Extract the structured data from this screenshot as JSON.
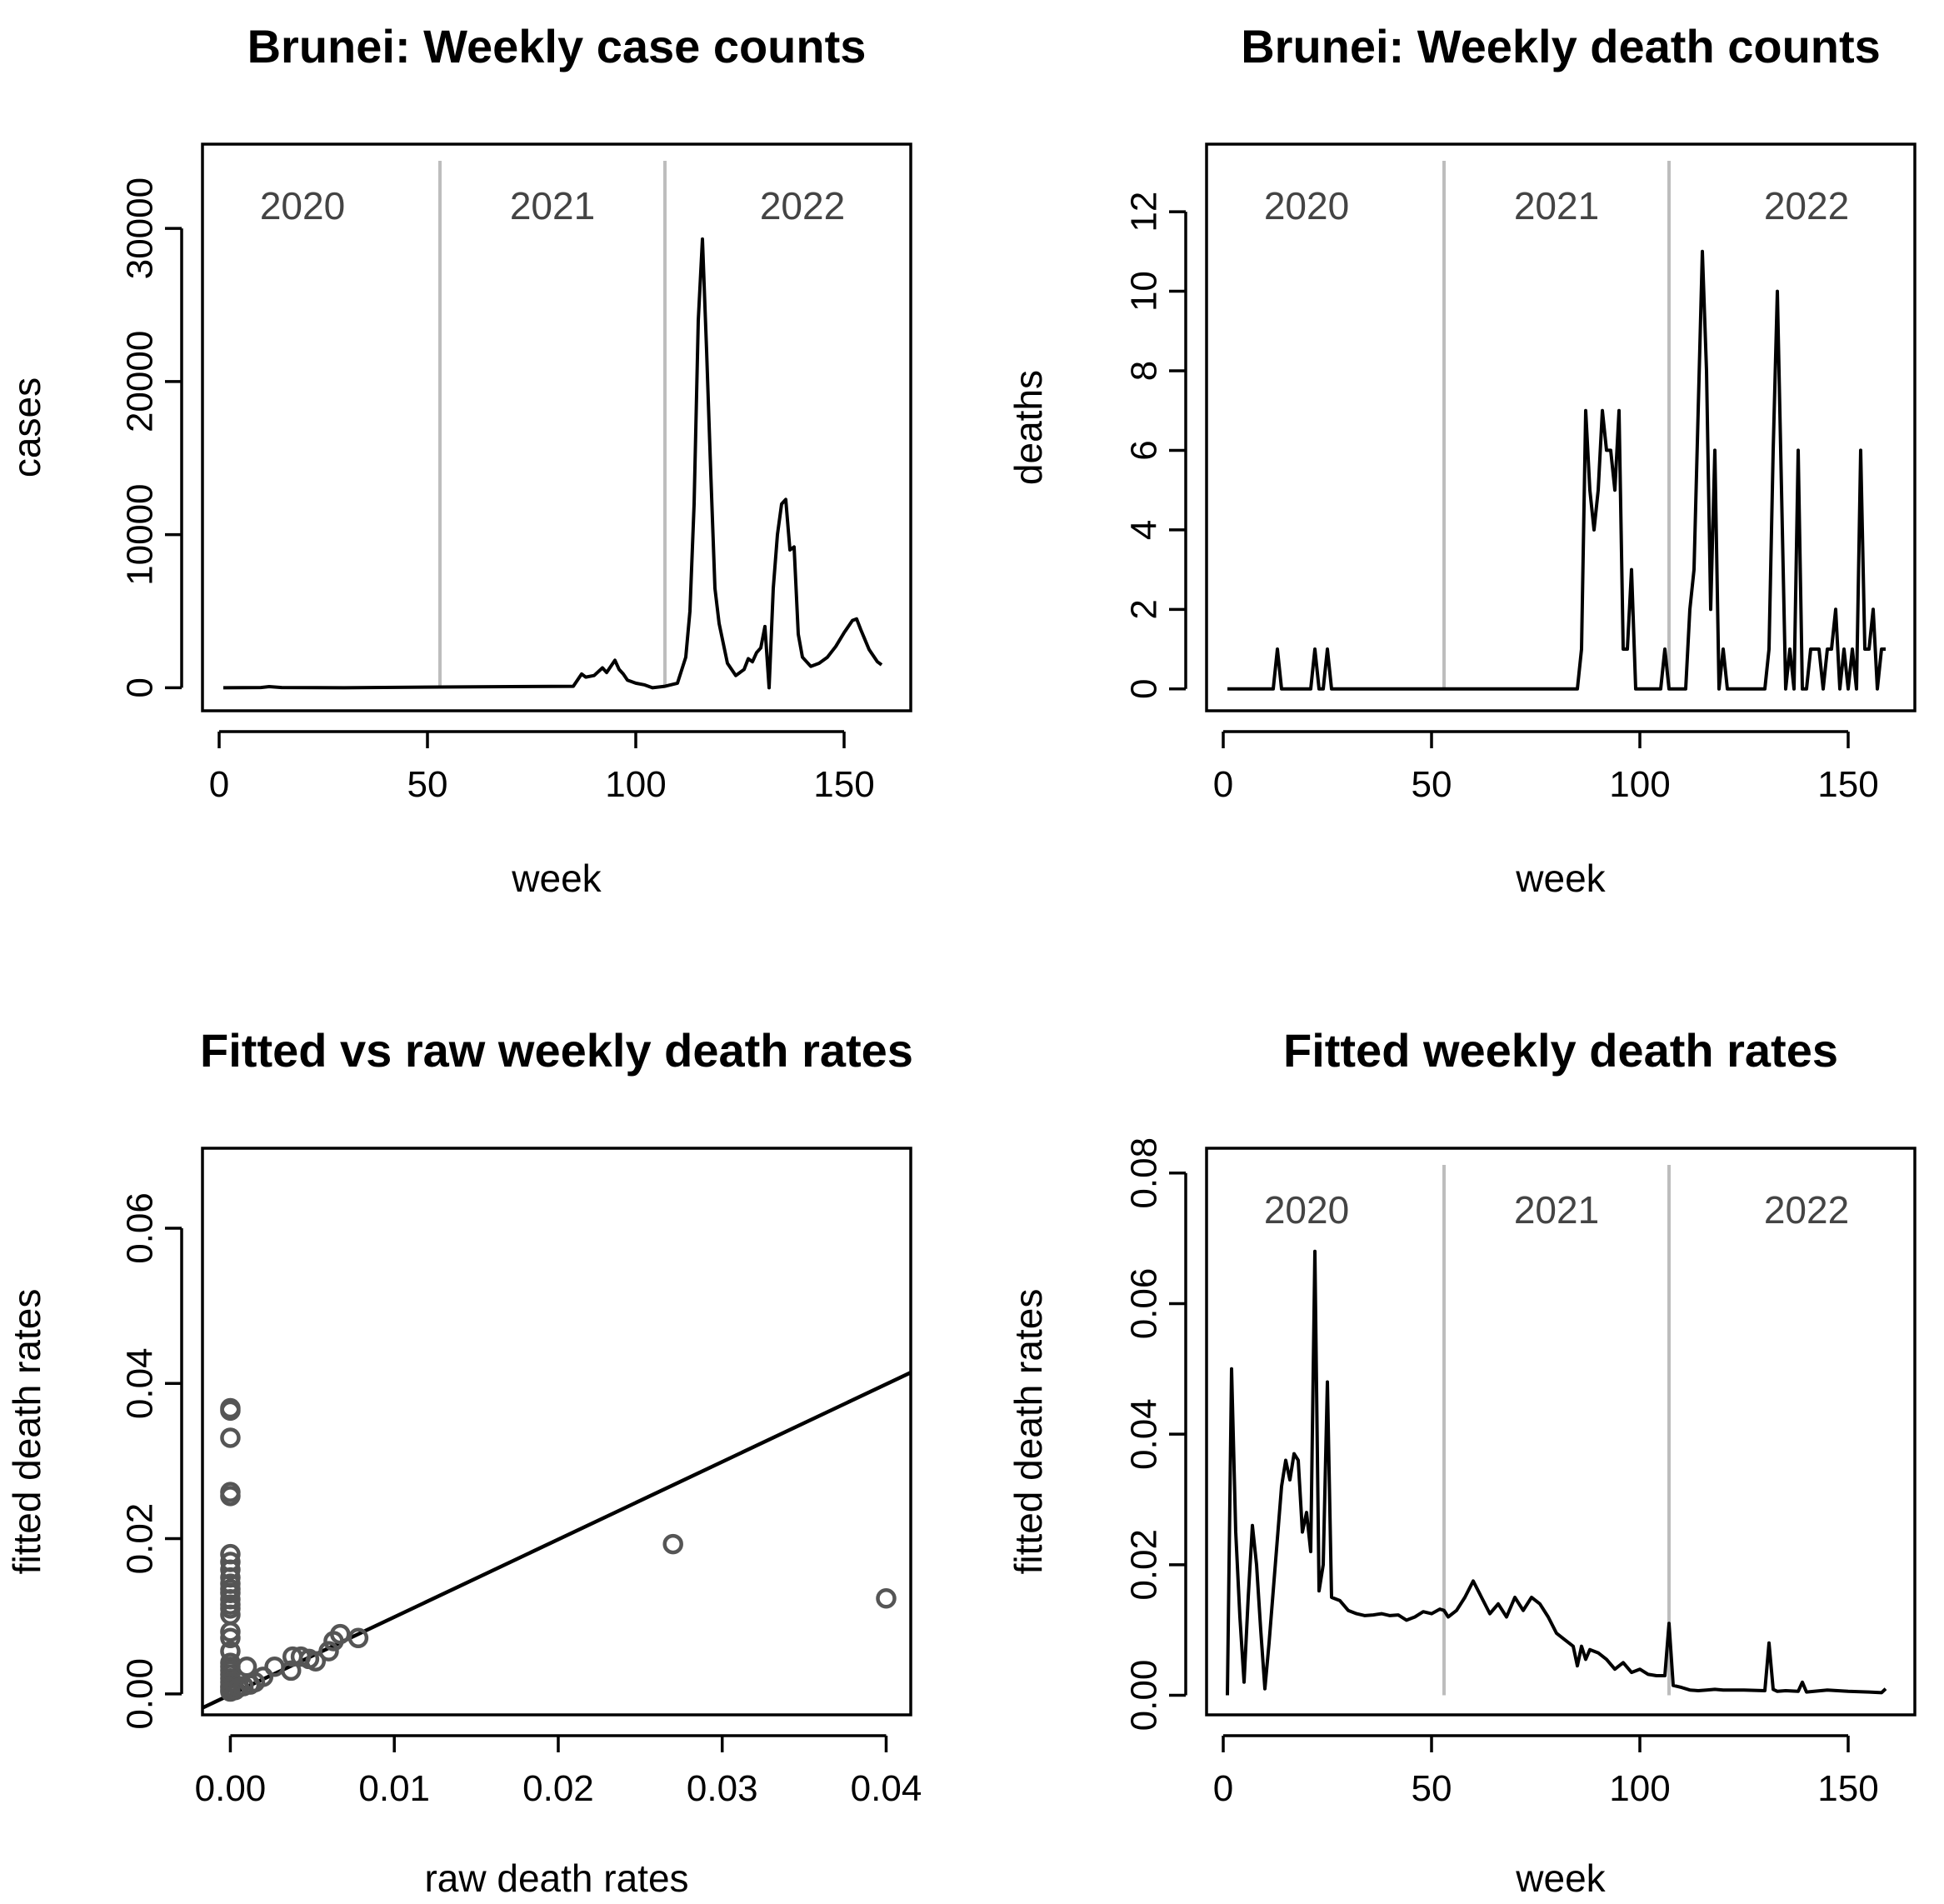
{
  "chart_data": [
    {
      "type": "line",
      "title": "Brunei: Weekly case counts",
      "xlabel": "week",
      "ylabel": "cases",
      "xlim": [
        -4,
        166
      ],
      "ylim": [
        -1500,
        35500
      ],
      "xticks": [
        0,
        50,
        100,
        150
      ],
      "yticks": [
        0,
        10000,
        20000,
        30000
      ],
      "ytick_labels": [
        "0",
        "10000",
        "20000",
        "30000"
      ],
      "year_dividers": [
        53,
        107
      ],
      "year_labels": [
        {
          "x": 20,
          "text": "2020"
        },
        {
          "x": 80,
          "text": "2021"
        },
        {
          "x": 140,
          "text": "2022"
        }
      ],
      "x": [
        1,
        10,
        12,
        15,
        30,
        53,
        70,
        85,
        87,
        88,
        90,
        92,
        93,
        94,
        95,
        96,
        97,
        98,
        100,
        102,
        104,
        107,
        110,
        112,
        113,
        114,
        115,
        116,
        117,
        118,
        119,
        120,
        122,
        124,
        126,
        127,
        128,
        129,
        130,
        131,
        132,
        133,
        134,
        135,
        136,
        137,
        138,
        139,
        140,
        142,
        144,
        146,
        148,
        150,
        152,
        153,
        154,
        156,
        158,
        159
      ],
      "y": [
        0,
        20,
        80,
        20,
        0,
        50,
        80,
        100,
        900,
        700,
        800,
        1300,
        1000,
        1400,
        1800,
        1200,
        900,
        500,
        300,
        200,
        0,
        100,
        300,
        2000,
        5000,
        12000,
        24000,
        29300,
        22000,
        14000,
        6500,
        4200,
        1600,
        800,
        1200,
        1900,
        1700,
        2300,
        2600,
        4000,
        0,
        6500,
        10000,
        12000,
        12300,
        9000,
        9200,
        3500,
        2000,
        1400,
        1600,
        2000,
        2700,
        3600,
        4400,
        4500,
        3800,
        2500,
        1700,
        1500
      ]
    },
    {
      "type": "line",
      "title": "Brunei: Weekly death counts",
      "xlabel": "week",
      "ylabel": "deaths",
      "xlim": [
        -4,
        166
      ],
      "ylim": [
        -0.55,
        13.7
      ],
      "xticks": [
        0,
        50,
        100,
        150
      ],
      "yticks": [
        0,
        2,
        4,
        6,
        8,
        10,
        12
      ],
      "ytick_labels": [
        "0",
        "2",
        "4",
        "6",
        "8",
        "10",
        "12"
      ],
      "year_dividers": [
        53,
        107
      ],
      "year_labels": [
        {
          "x": 20,
          "text": "2020"
        },
        {
          "x": 80,
          "text": "2021"
        },
        {
          "x": 140,
          "text": "2022"
        }
      ],
      "x": [
        1,
        12,
        13,
        14,
        21,
        22,
        23,
        24,
        25,
        26,
        85,
        86,
        87,
        88,
        89,
        90,
        91,
        92,
        93,
        94,
        95,
        96,
        97,
        98,
        99,
        100,
        101,
        105,
        106,
        107,
        108,
        111,
        112,
        113,
        114,
        115,
        116,
        117,
        118,
        119,
        120,
        121,
        122,
        125,
        130,
        131,
        132,
        133,
        134,
        135,
        136,
        137,
        138,
        139,
        140,
        141,
        142,
        143,
        144,
        145,
        146,
        147,
        148,
        149,
        150,
        151,
        152,
        153,
        154,
        155,
        156,
        157,
        158,
        159
      ],
      "y": [
        0,
        0,
        1,
        0,
        0,
        1,
        0,
        0,
        1,
        0,
        0,
        1,
        7,
        5,
        4,
        5,
        7,
        6,
        6,
        5,
        7,
        1,
        1,
        3,
        0,
        0,
        0,
        0,
        1,
        0,
        0,
        0,
        2,
        3,
        7,
        11,
        8,
        2,
        6,
        0,
        1,
        0,
        0,
        0,
        0,
        1,
        6,
        10,
        5,
        0,
        1,
        0,
        6,
        0,
        0,
        1,
        1,
        1,
        0,
        1,
        1,
        2,
        0,
        1,
        0,
        1,
        0,
        6,
        1,
        1,
        2,
        0,
        1,
        1
      ]
    },
    {
      "type": "scatter",
      "title": "Fitted vs raw weekly death rates",
      "xlabel": "raw death rates",
      "ylabel": "fitted death rates",
      "xlim": [
        -0.0017,
        0.0415
      ],
      "ylim": [
        -0.0027,
        0.0703
      ],
      "xticks": [
        0.0,
        0.01,
        0.02,
        0.03,
        0.04
      ],
      "xtick_labels": [
        "0.00",
        "0.01",
        "0.02",
        "0.03",
        "0.04"
      ],
      "yticks": [
        0.0,
        0.02,
        0.04,
        0.06
      ],
      "ytick_labels": [
        "0.00",
        "0.02",
        "0.04",
        "0.06"
      ],
      "points": [
        [
          0,
          0.0365
        ],
        [
          0,
          0.0368
        ],
        [
          0,
          0.033
        ],
        [
          0,
          0.026
        ],
        [
          0,
          0.0255
        ],
        [
          0,
          0.018
        ],
        [
          0,
          0.017
        ],
        [
          0,
          0.016
        ],
        [
          0,
          0.015
        ],
        [
          0,
          0.0142
        ],
        [
          0,
          0.0135
        ],
        [
          0,
          0.013
        ],
        [
          0,
          0.0122
        ],
        [
          0,
          0.0115
        ],
        [
          0,
          0.011
        ],
        [
          0,
          0.0102
        ],
        [
          0,
          0.008
        ],
        [
          0,
          0.0072
        ],
        [
          0,
          0.0055
        ],
        [
          0,
          0.004
        ],
        [
          0,
          0.0035
        ],
        [
          0,
          0.003
        ],
        [
          0,
          0.0025
        ],
        [
          0,
          0.002
        ],
        [
          0,
          0.0015
        ],
        [
          0,
          0.001
        ],
        [
          0,
          0.0008
        ],
        [
          0,
          0.0005
        ],
        [
          0,
          0.0003
        ],
        [
          0.0003,
          0.0005
        ],
        [
          0.0005,
          0.0008
        ],
        [
          0.0008,
          0.001
        ],
        [
          0.001,
          0.0035
        ],
        [
          0.0012,
          0.0012
        ],
        [
          0.0015,
          0.0015
        ],
        [
          0.002,
          0.0022
        ],
        [
          0.0027,
          0.0035
        ],
        [
          0.0037,
          0.003
        ],
        [
          0.0038,
          0.0048
        ],
        [
          0.0043,
          0.0048
        ],
        [
          0.0048,
          0.0045
        ],
        [
          0.0052,
          0.0042
        ],
        [
          0.006,
          0.0055
        ],
        [
          0.0063,
          0.0068
        ],
        [
          0.0067,
          0.0077
        ],
        [
          0.0078,
          0.0072
        ],
        [
          0.027,
          0.0193
        ],
        [
          0.04,
          0.0123
        ]
      ],
      "fit_line": {
        "intercept": -0.0001,
        "slope": 1.0
      }
    },
    {
      "type": "line",
      "title": "Fitted weekly death rates",
      "xlabel": "week",
      "ylabel": "fitted death rates",
      "xlim": [
        -4,
        166
      ],
      "ylim": [
        -0.003,
        0.0838
      ],
      "xticks": [
        0,
        50,
        100,
        150
      ],
      "yticks": [
        0.0,
        0.02,
        0.04,
        0.06,
        0.08
      ],
      "ytick_labels": [
        "0.00",
        "0.02",
        "0.04",
        "0.06",
        "0.08"
      ],
      "year_dividers": [
        53,
        107
      ],
      "year_labels": [
        {
          "x": 20,
          "text": "2020"
        },
        {
          "x": 80,
          "text": "2021"
        },
        {
          "x": 140,
          "text": "2022"
        }
      ],
      "x": [
        1,
        2,
        3,
        4,
        5,
        6,
        7,
        8,
        9,
        10,
        11,
        12,
        13,
        14,
        15,
        16,
        17,
        18,
        19,
        20,
        21,
        22,
        23,
        24,
        25,
        26,
        28,
        30,
        32,
        34,
        36,
        38,
        40,
        42,
        44,
        46,
        48,
        50,
        52,
        53,
        54,
        56,
        58,
        60,
        62,
        64,
        66,
        68,
        70,
        72,
        74,
        76,
        78,
        80,
        82,
        84,
        85,
        86,
        87,
        88,
        90,
        92,
        94,
        96,
        98,
        100,
        102,
        104,
        106,
        107,
        108,
        110,
        112,
        114,
        116,
        118,
        120,
        125,
        130,
        131,
        132,
        133,
        135,
        138,
        139,
        140,
        145,
        150,
        155,
        158,
        159
      ],
      "y": [
        0.0,
        0.05,
        0.025,
        0.012,
        0.002,
        0.015,
        0.026,
        0.02,
        0.01,
        0.001,
        0.008,
        0.016,
        0.024,
        0.032,
        0.036,
        0.033,
        0.037,
        0.036,
        0.025,
        0.028,
        0.022,
        0.068,
        0.016,
        0.02,
        0.048,
        0.015,
        0.0145,
        0.013,
        0.0125,
        0.0122,
        0.0123,
        0.0125,
        0.0122,
        0.0123,
        0.0115,
        0.012,
        0.0128,
        0.0125,
        0.0132,
        0.013,
        0.012,
        0.013,
        0.015,
        0.0175,
        0.015,
        0.0125,
        0.014,
        0.012,
        0.015,
        0.013,
        0.015,
        0.014,
        0.012,
        0.0095,
        0.0085,
        0.0075,
        0.0045,
        0.0075,
        0.0055,
        0.007,
        0.0065,
        0.0055,
        0.004,
        0.005,
        0.0035,
        0.004,
        0.0032,
        0.003,
        0.003,
        0.011,
        0.0015,
        0.0012,
        0.0008,
        0.0007,
        0.0008,
        0.0009,
        0.0008,
        0.0008,
        0.0007,
        0.008,
        0.0009,
        0.0006,
        0.0007,
        0.0006,
        0.002,
        0.0005,
        0.0008,
        0.0006,
        0.0005,
        0.0004,
        0.001
      ]
    }
  ]
}
